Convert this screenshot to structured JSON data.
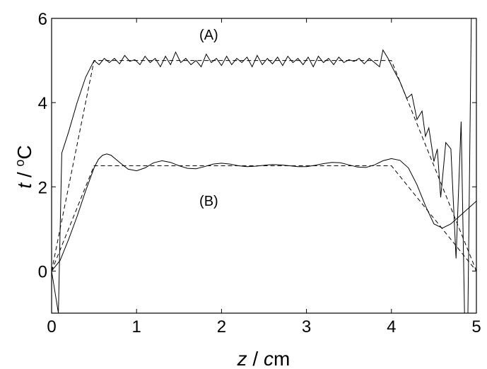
{
  "chart_data": {
    "type": "line",
    "xlabel": "z / cm",
    "ylabel": "t / °C",
    "xlim": [
      0,
      5
    ],
    "ylim": [
      -1,
      6
    ],
    "xticks": [
      0,
      1,
      2,
      3,
      4,
      5
    ],
    "yticks": [
      0,
      2,
      4,
      6
    ],
    "grid": false,
    "annotations": [
      {
        "text": "(A)",
        "x": 1.85,
        "y": 5.5
      },
      {
        "text": "(B)",
        "x": 1.85,
        "y": 1.55
      }
    ],
    "series": [
      {
        "style": "dashed",
        "points": [
          [
            0.0,
            0.0
          ],
          [
            0.5,
            5.0
          ],
          [
            4.0,
            5.0
          ],
          [
            5.0,
            0.0
          ]
        ]
      },
      {
        "style": "solid",
        "points": [
          [
            0.0,
            0.0
          ],
          [
            0.08,
            -1.0
          ],
          [
            0.12,
            2.8
          ],
          [
            0.2,
            3.3
          ],
          [
            0.3,
            4.0
          ],
          [
            0.4,
            4.6
          ],
          [
            0.5,
            5.0
          ],
          [
            0.56,
            4.9
          ],
          [
            0.62,
            5.05
          ],
          [
            0.68,
            4.95
          ],
          [
            0.74,
            5.05
          ],
          [
            0.8,
            4.92
          ],
          [
            0.86,
            5.12
          ],
          [
            0.92,
            4.98
          ],
          [
            0.98,
            5.02
          ],
          [
            1.04,
            4.9
          ],
          [
            1.1,
            5.1
          ],
          [
            1.16,
            4.95
          ],
          [
            1.22,
            5.05
          ],
          [
            1.28,
            4.85
          ],
          [
            1.34,
            5.1
          ],
          [
            1.4,
            4.9
          ],
          [
            1.46,
            5.2
          ],
          [
            1.52,
            4.95
          ],
          [
            1.58,
            5.05
          ],
          [
            1.64,
            4.9
          ],
          [
            1.7,
            5.0
          ],
          [
            1.76,
            4.85
          ],
          [
            1.82,
            5.15
          ],
          [
            1.88,
            4.95
          ],
          [
            1.94,
            5.05
          ],
          [
            2.0,
            4.88
          ],
          [
            2.06,
            5.1
          ],
          [
            2.12,
            4.9
          ],
          [
            2.18,
            5.05
          ],
          [
            2.24,
            4.95
          ],
          [
            2.3,
            5.08
          ],
          [
            2.36,
            4.85
          ],
          [
            2.42,
            5.12
          ],
          [
            2.48,
            4.9
          ],
          [
            2.54,
            5.05
          ],
          [
            2.6,
            4.92
          ],
          [
            2.66,
            5.08
          ],
          [
            2.72,
            4.88
          ],
          [
            2.78,
            5.1
          ],
          [
            2.84,
            4.95
          ],
          [
            2.9,
            5.05
          ],
          [
            2.96,
            4.9
          ],
          [
            3.02,
            5.08
          ],
          [
            3.08,
            4.85
          ],
          [
            3.14,
            5.1
          ],
          [
            3.2,
            4.95
          ],
          [
            3.26,
            5.05
          ],
          [
            3.32,
            4.9
          ],
          [
            3.38,
            5.08
          ],
          [
            3.44,
            4.95
          ],
          [
            3.5,
            5.02
          ],
          [
            3.56,
            4.98
          ],
          [
            3.62,
            5.05
          ],
          [
            3.68,
            4.92
          ],
          [
            3.74,
            5.05
          ],
          [
            3.8,
            4.95
          ],
          [
            3.86,
            4.85
          ],
          [
            3.9,
            5.25
          ],
          [
            3.96,
            5.05
          ],
          [
            4.02,
            4.8
          ],
          [
            4.1,
            4.5
          ],
          [
            4.18,
            4.1
          ],
          [
            4.24,
            4.2
          ],
          [
            4.3,
            3.6
          ],
          [
            4.36,
            3.8
          ],
          [
            4.4,
            3.2
          ],
          [
            4.44,
            3.4
          ],
          [
            4.5,
            2.6
          ],
          [
            4.54,
            2.9
          ],
          [
            4.58,
            1.75
          ],
          [
            4.64,
            3.05
          ],
          [
            4.7,
            2.9
          ],
          [
            4.76,
            0.3
          ],
          [
            4.82,
            3.55
          ],
          [
            4.86,
            -1.0
          ],
          [
            4.9,
            -1.0
          ],
          [
            4.94,
            6.0
          ]
        ]
      },
      {
        "style": "dashed",
        "points": [
          [
            0.0,
            0.0
          ],
          [
            0.5,
            2.5
          ],
          [
            4.0,
            2.5
          ],
          [
            5.0,
            0.0
          ]
        ]
      },
      {
        "style": "solid",
        "points": [
          [
            0.0,
            0.0
          ],
          [
            0.1,
            0.25
          ],
          [
            0.2,
            0.75
          ],
          [
            0.3,
            1.3
          ],
          [
            0.4,
            1.9
          ],
          [
            0.5,
            2.45
          ],
          [
            0.55,
            2.65
          ],
          [
            0.6,
            2.75
          ],
          [
            0.65,
            2.78
          ],
          [
            0.7,
            2.75
          ],
          [
            0.8,
            2.58
          ],
          [
            0.9,
            2.42
          ],
          [
            1.0,
            2.38
          ],
          [
            1.1,
            2.45
          ],
          [
            1.2,
            2.57
          ],
          [
            1.3,
            2.62
          ],
          [
            1.4,
            2.58
          ],
          [
            1.5,
            2.5
          ],
          [
            1.6,
            2.44
          ],
          [
            1.7,
            2.43
          ],
          [
            1.8,
            2.48
          ],
          [
            1.9,
            2.54
          ],
          [
            2.0,
            2.56
          ],
          [
            2.1,
            2.54
          ],
          [
            2.2,
            2.5
          ],
          [
            2.3,
            2.48
          ],
          [
            2.4,
            2.49
          ],
          [
            2.5,
            2.51
          ],
          [
            2.6,
            2.53
          ],
          [
            2.7,
            2.52
          ],
          [
            2.8,
            2.5
          ],
          [
            2.9,
            2.48
          ],
          [
            3.0,
            2.48
          ],
          [
            3.1,
            2.51
          ],
          [
            3.2,
            2.55
          ],
          [
            3.3,
            2.58
          ],
          [
            3.4,
            2.57
          ],
          [
            3.5,
            2.52
          ],
          [
            3.6,
            2.47
          ],
          [
            3.7,
            2.46
          ],
          [
            3.8,
            2.52
          ],
          [
            3.9,
            2.62
          ],
          [
            4.0,
            2.67
          ],
          [
            4.1,
            2.63
          ],
          [
            4.2,
            2.45
          ],
          [
            4.3,
            2.05
          ],
          [
            4.4,
            1.55
          ],
          [
            4.5,
            1.12
          ],
          [
            4.6,
            1.02
          ],
          [
            4.7,
            1.12
          ],
          [
            4.8,
            1.3
          ],
          [
            4.9,
            1.48
          ],
          [
            5.0,
            1.66
          ]
        ]
      }
    ]
  }
}
